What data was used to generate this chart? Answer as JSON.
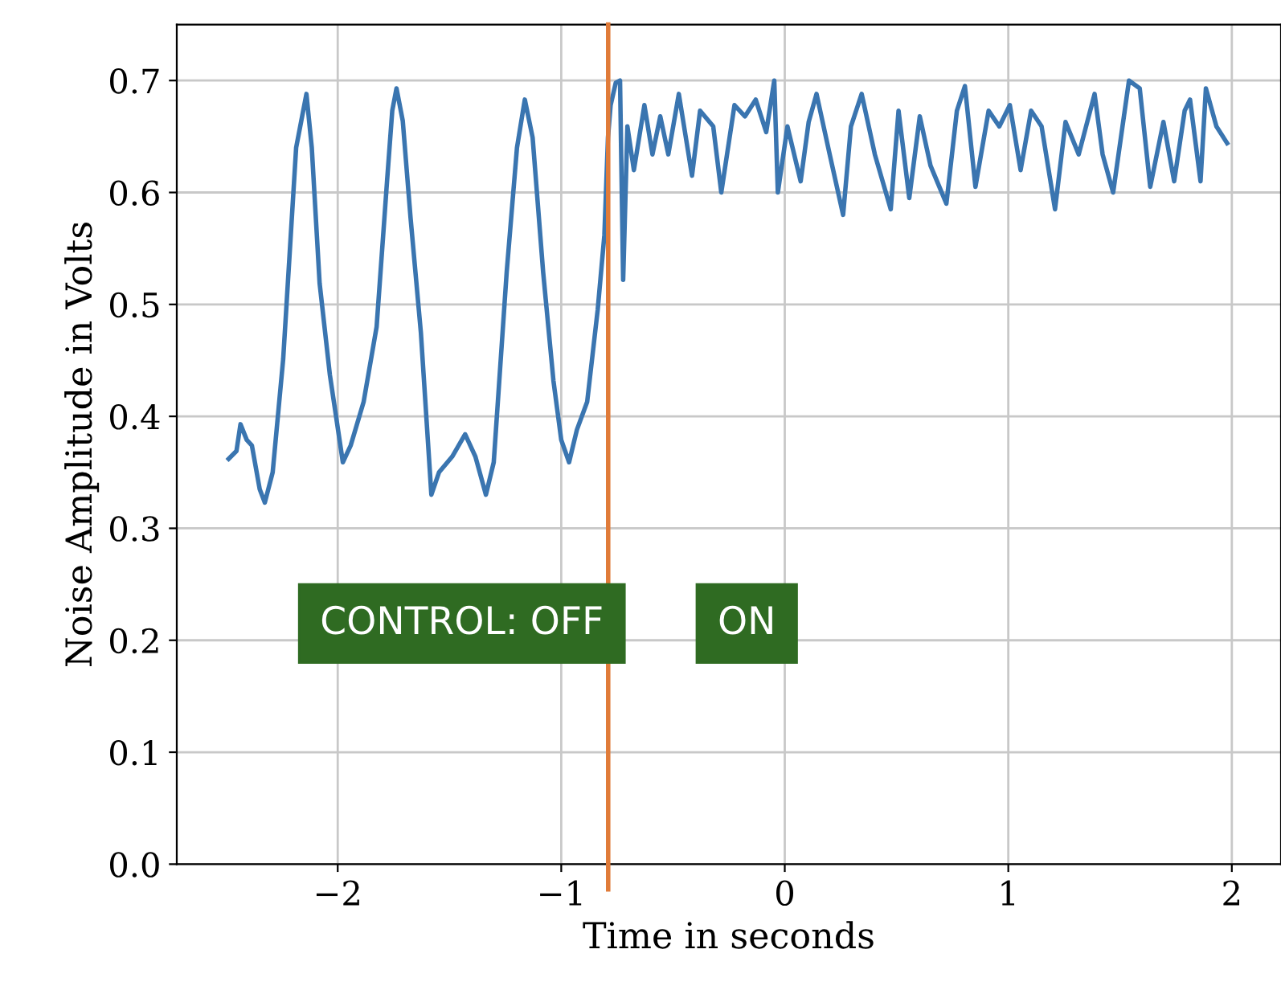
{
  "chart_data": {
    "type": "line",
    "xlabel": "Time in seconds",
    "ylabel": "Noise Amplitude in Volts",
    "xlim": [
      -2.72,
      2.22
    ],
    "ylim": [
      0,
      0.75
    ],
    "xticks": [
      {
        "value": -2,
        "label": "−2"
      },
      {
        "value": -1,
        "label": "−1"
      },
      0,
      1,
      2
    ],
    "yticks": [
      {
        "value": 0,
        "label": "0.0"
      },
      0.1,
      0.2,
      0.3,
      0.4,
      0.5,
      0.6,
      0.7
    ],
    "grid": true,
    "series": [
      {
        "color": "#3a75b0",
        "x": [
          -2.488,
          -2.453,
          -2.435,
          -2.407,
          -2.384,
          -2.349,
          -2.326,
          -2.291,
          -2.244,
          -2.186,
          -2.163,
          -2.14,
          -2.116,
          -2.081,
          -2.035,
          -1.977,
          -1.942,
          -1.884,
          -1.826,
          -1.779,
          -1.756,
          -1.737,
          -1.709,
          -1.674,
          -1.628,
          -1.581,
          -1.547,
          -1.488,
          -1.43,
          -1.384,
          -1.337,
          -1.302,
          -1.244,
          -1.198,
          -1.163,
          -1.128,
          -1.081,
          -1.035,
          -1.0,
          -0.965,
          -0.93,
          -0.884,
          -0.837,
          -0.807,
          -0.791,
          -0.779,
          -0.756,
          -0.737,
          -0.723,
          -0.704,
          -0.675,
          -0.628,
          -0.592,
          -0.557,
          -0.521,
          -0.474,
          -0.415,
          -0.379,
          -0.32,
          -0.284,
          -0.225,
          -0.178,
          -0.13,
          -0.083,
          -0.047,
          -0.031,
          0.012,
          0.071,
          0.107,
          0.142,
          0.201,
          0.261,
          0.296,
          0.344,
          0.403,
          0.474,
          0.509,
          0.557,
          0.604,
          0.652,
          0.723,
          0.77,
          0.806,
          0.853,
          0.912,
          0.96,
          1.007,
          1.055,
          1.102,
          1.149,
          1.209,
          1.256,
          1.315,
          1.386,
          1.422,
          1.469,
          1.54,
          1.588,
          1.635,
          1.694,
          1.742,
          1.789,
          1.813,
          1.86,
          1.884,
          1.931,
          1.979
        ],
        "values": [
          0.362,
          0.369,
          0.393,
          0.379,
          0.374,
          0.335,
          0.323,
          0.35,
          0.451,
          0.64,
          0.664,
          0.688,
          0.64,
          0.519,
          0.437,
          0.359,
          0.374,
          0.413,
          0.48,
          0.611,
          0.673,
          0.693,
          0.664,
          0.577,
          0.475,
          0.33,
          0.35,
          0.364,
          0.384,
          0.364,
          0.33,
          0.359,
          0.529,
          0.64,
          0.683,
          0.649,
          0.529,
          0.432,
          0.379,
          0.359,
          0.388,
          0.413,
          0.495,
          0.562,
          0.649,
          0.678,
          0.698,
          0.7,
          0.522,
          0.659,
          0.62,
          0.678,
          0.634,
          0.668,
          0.634,
          0.688,
          0.615,
          0.673,
          0.659,
          0.6,
          0.678,
          0.668,
          0.683,
          0.654,
          0.7,
          0.6,
          0.659,
          0.61,
          0.663,
          0.688,
          0.634,
          0.58,
          0.659,
          0.688,
          0.634,
          0.585,
          0.673,
          0.595,
          0.668,
          0.624,
          0.59,
          0.673,
          0.695,
          0.605,
          0.673,
          0.659,
          0.678,
          0.62,
          0.673,
          0.659,
          0.585,
          0.663,
          0.634,
          0.688,
          0.634,
          0.6,
          0.7,
          0.693,
          0.605,
          0.663,
          0.61,
          0.673,
          0.683,
          0.61,
          0.693,
          0.659,
          0.644
        ]
      }
    ],
    "ref_lines": [
      {
        "axis": "x",
        "value": -0.79,
        "color": "#e07b39"
      }
    ],
    "annotations": [
      "CONTROL: OFF",
      "ON"
    ]
  }
}
